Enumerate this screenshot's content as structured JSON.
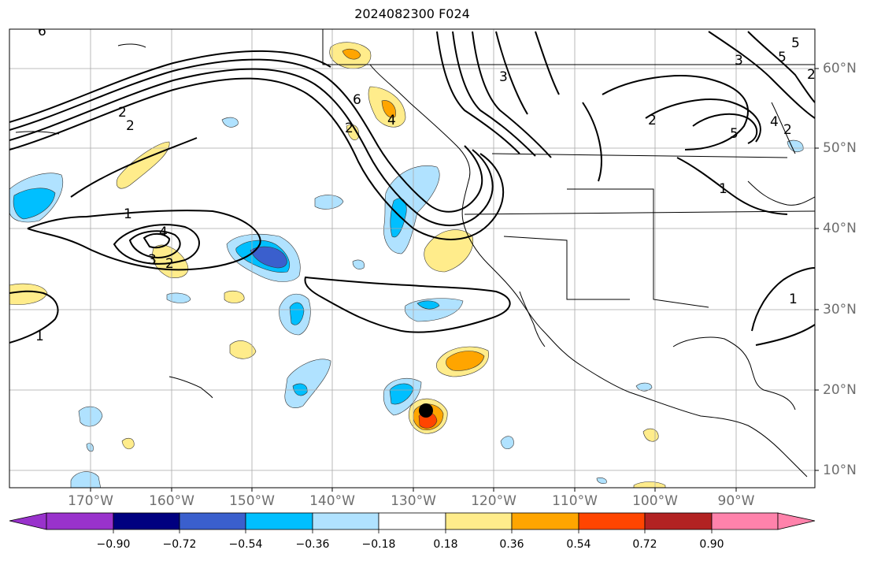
{
  "title": "2024082300 F024",
  "map": {
    "lon_labels": [
      "170°W",
      "160°W",
      "150°W",
      "140°W",
      "130°W",
      "120°W",
      "110°W",
      "100°W",
      "90°W"
    ],
    "lat_labels": [
      "60°N",
      "50°N",
      "40°N",
      "30°N",
      "20°N",
      "10°N"
    ],
    "contour_labels": [
      "6",
      "3",
      "5",
      "5",
      "2",
      "2",
      "6",
      "2",
      "3",
      "2",
      "4",
      "5",
      "4",
      "2",
      "1",
      "2",
      "1",
      "4",
      "3",
      "2",
      "1",
      "1"
    ],
    "storm_marker": {
      "lon": -128.7,
      "lat": 17.5
    }
  },
  "colorbar": {
    "tick_labels": [
      "−0.90",
      "−0.72",
      "−0.54",
      "−0.36",
      "−0.18",
      "0.18",
      "0.36",
      "0.54",
      "0.72",
      "0.90"
    ],
    "colors": [
      "#9932cc",
      "#000080",
      "#3a5fcd",
      "#00bfff",
      "#b0e2ff",
      "#ffffff",
      "#ffec8b",
      "#ffa500",
      "#ff4500",
      "#b22222",
      "#ff82ab"
    ]
  }
}
